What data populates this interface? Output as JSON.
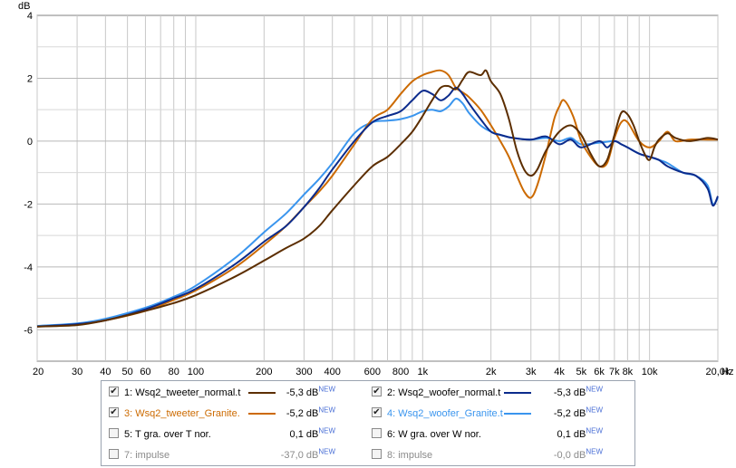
{
  "chart_data": {
    "type": "line",
    "ylabel": "dB",
    "xlabel": "Hz",
    "xscale": "log",
    "xlim": [
      20,
      20000
    ],
    "ylim": [
      -7,
      4
    ],
    "grid": true,
    "yticks": [
      4,
      2,
      0,
      -2,
      -4,
      -6
    ],
    "ytick_labels": [
      "4",
      "2",
      "0",
      "-2",
      "-4",
      "-6"
    ],
    "xticks": [
      20,
      30,
      40,
      50,
      60,
      80,
      100,
      200,
      300,
      400,
      600,
      800,
      1000,
      2000,
      3000,
      4000,
      5000,
      6000,
      7000,
      8000,
      10000,
      20000
    ],
    "xtick_labels": [
      "20",
      "30",
      "40",
      "50",
      "60",
      "80",
      "100",
      "200",
      "300",
      "400",
      "600",
      "800",
      "1k",
      "2k",
      "3k",
      "4k",
      "5k",
      "6k",
      "7k",
      "8k",
      "10k",
      "20,0k"
    ],
    "series": [
      {
        "name": "Wsq2_tweeter_normal.t",
        "color": "#5c2e00",
        "points": [
          [
            20,
            -5.9
          ],
          [
            30,
            -5.85
          ],
          [
            40,
            -5.7
          ],
          [
            60,
            -5.4
          ],
          [
            80,
            -5.15
          ],
          [
            100,
            -4.9
          ],
          [
            150,
            -4.3
          ],
          [
            200,
            -3.8
          ],
          [
            250,
            -3.4
          ],
          [
            300,
            -3.1
          ],
          [
            350,
            -2.7
          ],
          [
            400,
            -2.2
          ],
          [
            500,
            -1.4
          ],
          [
            600,
            -0.8
          ],
          [
            700,
            -0.5
          ],
          [
            800,
            -0.1
          ],
          [
            900,
            0.3
          ],
          [
            1000,
            0.8
          ],
          [
            1100,
            1.3
          ],
          [
            1200,
            1.7
          ],
          [
            1300,
            1.75
          ],
          [
            1400,
            1.65
          ],
          [
            1500,
            1.95
          ],
          [
            1600,
            2.2
          ],
          [
            1800,
            2.1
          ],
          [
            1900,
            2.25
          ],
          [
            2000,
            1.9
          ],
          [
            2200,
            1.5
          ],
          [
            2400,
            0.7
          ],
          [
            2600,
            -0.3
          ],
          [
            2800,
            -0.9
          ],
          [
            3000,
            -1.1
          ],
          [
            3200,
            -0.9
          ],
          [
            3500,
            -0.3
          ],
          [
            4000,
            0.3
          ],
          [
            4500,
            0.5
          ],
          [
            5000,
            0.2
          ],
          [
            5500,
            -0.4
          ],
          [
            6000,
            -0.8
          ],
          [
            6500,
            -0.6
          ],
          [
            7000,
            0.2
          ],
          [
            7500,
            0.9
          ],
          [
            8000,
            0.85
          ],
          [
            8500,
            0.5
          ],
          [
            9000,
            0.0
          ],
          [
            9500,
            -0.4
          ],
          [
            10000,
            -0.6
          ],
          [
            10500,
            -0.2
          ],
          [
            11000,
            0.05
          ],
          [
            12000,
            0.25
          ],
          [
            13000,
            0.1
          ],
          [
            15000,
            0.0
          ],
          [
            18000,
            0.1
          ],
          [
            20000,
            0.05
          ]
        ]
      },
      {
        "name": "Wsq2_woofer_normal.t",
        "color": "#0b2b8c",
        "points": [
          [
            20,
            -5.9
          ],
          [
            30,
            -5.82
          ],
          [
            40,
            -5.7
          ],
          [
            60,
            -5.35
          ],
          [
            80,
            -5.0
          ],
          [
            100,
            -4.7
          ],
          [
            150,
            -3.9
          ],
          [
            200,
            -3.2
          ],
          [
            250,
            -2.7
          ],
          [
            300,
            -2.1
          ],
          [
            350,
            -1.5
          ],
          [
            400,
            -0.9
          ],
          [
            500,
            0.0
          ],
          [
            600,
            0.6
          ],
          [
            700,
            0.8
          ],
          [
            800,
            0.95
          ],
          [
            900,
            1.3
          ],
          [
            1000,
            1.6
          ],
          [
            1100,
            1.5
          ],
          [
            1200,
            1.3
          ],
          [
            1300,
            1.45
          ],
          [
            1400,
            1.7
          ],
          [
            1500,
            1.5
          ],
          [
            1600,
            1.2
          ],
          [
            1800,
            0.7
          ],
          [
            2000,
            0.3
          ],
          [
            2200,
            0.2
          ],
          [
            2500,
            0.1
          ],
          [
            3000,
            0.05
          ],
          [
            3500,
            0.15
          ],
          [
            4000,
            -0.1
          ],
          [
            4500,
            0.05
          ],
          [
            5000,
            -0.2
          ],
          [
            6000,
            0.0
          ],
          [
            6500,
            -0.2
          ],
          [
            7000,
            0.0
          ],
          [
            7500,
            -0.1
          ],
          [
            8000,
            -0.2
          ],
          [
            9000,
            -0.4
          ],
          [
            10000,
            -0.5
          ],
          [
            11000,
            -0.6
          ],
          [
            12000,
            -0.8
          ],
          [
            14000,
            -1.0
          ],
          [
            16000,
            -1.1
          ],
          [
            18000,
            -1.5
          ],
          [
            19000,
            -2.05
          ],
          [
            20000,
            -1.75
          ]
        ]
      },
      {
        "name": "Wsq2_tweeter_Granite.",
        "color": "#cc6a00",
        "points": [
          [
            20,
            -5.9
          ],
          [
            30,
            -5.83
          ],
          [
            40,
            -5.7
          ],
          [
            60,
            -5.4
          ],
          [
            80,
            -5.05
          ],
          [
            100,
            -4.75
          ],
          [
            150,
            -4.0
          ],
          [
            200,
            -3.3
          ],
          [
            250,
            -2.7
          ],
          [
            300,
            -2.1
          ],
          [
            350,
            -1.6
          ],
          [
            400,
            -1.1
          ],
          [
            500,
            -0.1
          ],
          [
            600,
            0.7
          ],
          [
            700,
            1.0
          ],
          [
            800,
            1.5
          ],
          [
            900,
            1.9
          ],
          [
            1000,
            2.1
          ],
          [
            1100,
            2.2
          ],
          [
            1200,
            2.25
          ],
          [
            1300,
            2.1
          ],
          [
            1400,
            1.7
          ],
          [
            1500,
            1.55
          ],
          [
            1600,
            1.4
          ],
          [
            1800,
            1.0
          ],
          [
            2000,
            0.5
          ],
          [
            2200,
            0.0
          ],
          [
            2400,
            -0.5
          ],
          [
            2600,
            -1.1
          ],
          [
            2800,
            -1.6
          ],
          [
            3000,
            -1.8
          ],
          [
            3200,
            -1.4
          ],
          [
            3500,
            -0.4
          ],
          [
            3800,
            0.7
          ],
          [
            4000,
            1.1
          ],
          [
            4200,
            1.3
          ],
          [
            4600,
            0.8
          ],
          [
            5000,
            0.0
          ],
          [
            5500,
            -0.5
          ],
          [
            6000,
            -0.8
          ],
          [
            6500,
            -0.7
          ],
          [
            7000,
            0.1
          ],
          [
            7500,
            0.6
          ],
          [
            8000,
            0.6
          ],
          [
            9000,
            0.0
          ],
          [
            10000,
            -0.2
          ],
          [
            11000,
            0.0
          ],
          [
            12000,
            0.3
          ],
          [
            13000,
            0.0
          ],
          [
            15000,
            0.05
          ],
          [
            18000,
            0.05
          ],
          [
            20000,
            0.05
          ]
        ]
      },
      {
        "name": "Wsq2_woofer_Granite.t",
        "color": "#3a95ee",
        "points": [
          [
            20,
            -5.88
          ],
          [
            30,
            -5.8
          ],
          [
            40,
            -5.65
          ],
          [
            60,
            -5.3
          ],
          [
            80,
            -4.95
          ],
          [
            100,
            -4.6
          ],
          [
            150,
            -3.7
          ],
          [
            200,
            -2.9
          ],
          [
            250,
            -2.3
          ],
          [
            300,
            -1.7
          ],
          [
            350,
            -1.2
          ],
          [
            400,
            -0.7
          ],
          [
            500,
            0.25
          ],
          [
            600,
            0.6
          ],
          [
            700,
            0.65
          ],
          [
            800,
            0.7
          ],
          [
            900,
            0.8
          ],
          [
            1000,
            0.95
          ],
          [
            1100,
            1.0
          ],
          [
            1200,
            0.95
          ],
          [
            1300,
            1.1
          ],
          [
            1400,
            1.35
          ],
          [
            1500,
            1.2
          ],
          [
            1600,
            0.9
          ],
          [
            1800,
            0.5
          ],
          [
            2000,
            0.3
          ],
          [
            2200,
            0.2
          ],
          [
            2500,
            0.1
          ],
          [
            3000,
            0.05
          ],
          [
            3500,
            0.1
          ],
          [
            4000,
            0.0
          ],
          [
            4500,
            0.1
          ],
          [
            5000,
            -0.1
          ],
          [
            6000,
            -0.05
          ],
          [
            7000,
            0.0
          ],
          [
            7500,
            -0.1
          ],
          [
            8000,
            -0.2
          ],
          [
            9000,
            -0.4
          ],
          [
            10000,
            -0.5
          ],
          [
            11000,
            -0.6
          ],
          [
            12000,
            -0.7
          ],
          [
            14000,
            -1.0
          ],
          [
            16000,
            -1.1
          ],
          [
            18000,
            -1.4
          ],
          [
            19000,
            -2.0
          ],
          [
            20000,
            -1.8
          ]
        ]
      }
    ]
  },
  "legend": {
    "items": [
      {
        "label": "1: Wsq2_tweeter_normal.t",
        "value": "-5,3 dB",
        "checked": true,
        "color": "#5c2e00",
        "enabled": true
      },
      {
        "label": "2: Wsq2_woofer_normal.t",
        "value": "-5,3 dB",
        "checked": true,
        "color": "#0b2b8c",
        "enabled": true
      },
      {
        "label": "3: Wsq2_tweeter_Granite.",
        "value": "-5,2 dB",
        "checked": true,
        "color": "#cc6a00",
        "enabled": true
      },
      {
        "label": "4: Wsq2_woofer_Granite.t",
        "value": "-5,2 dB",
        "checked": true,
        "color": "#3a95ee",
        "enabled": true
      },
      {
        "label": "5: T gra. over T nor.",
        "value": "0,1 dB",
        "checked": false,
        "color": "",
        "enabled": true
      },
      {
        "label": "6: W gra. over W nor.",
        "value": "0,1 dB",
        "checked": false,
        "color": "",
        "enabled": true
      },
      {
        "label": "7: impulse",
        "value": "-37,0 dB",
        "checked": false,
        "color": "",
        "enabled": false
      },
      {
        "label": "8: impulse",
        "value": "-0,0 dB",
        "checked": false,
        "color": "",
        "enabled": false
      }
    ],
    "new_tag": "NEW"
  }
}
